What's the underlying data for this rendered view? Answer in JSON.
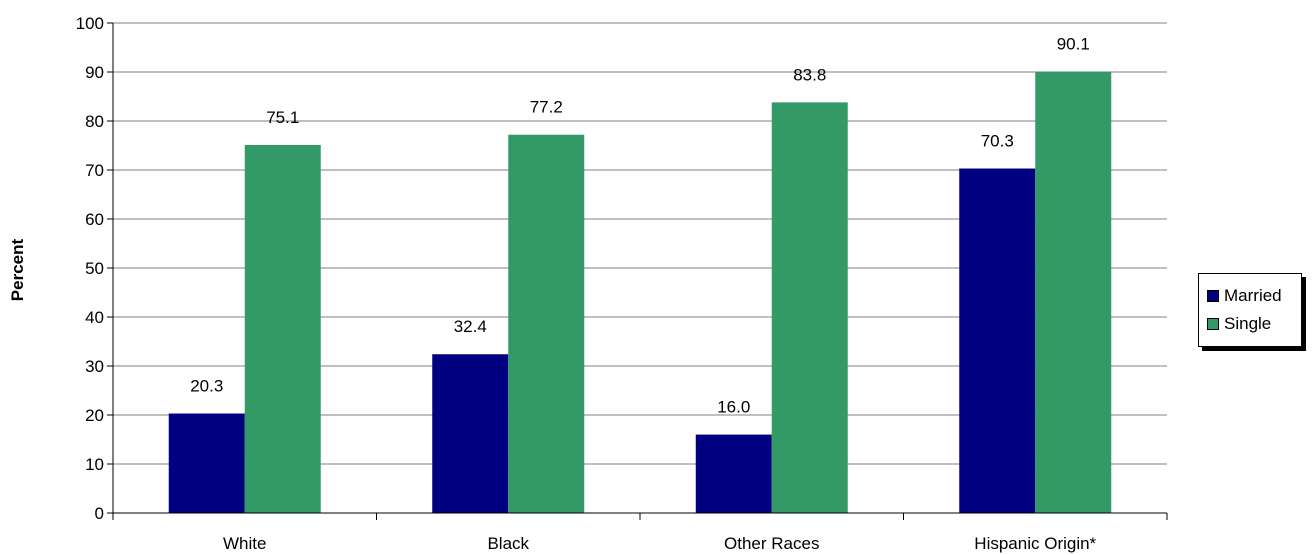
{
  "chart_data": {
    "type": "bar",
    "categories": [
      "White",
      "Black",
      "Other Races",
      "Hispanic Origin*"
    ],
    "series": [
      {
        "name": "Married",
        "values": [
          20.3,
          32.4,
          16.0,
          70.3
        ],
        "color": "#000080"
      },
      {
        "name": "Single",
        "values": [
          75.1,
          77.2,
          83.8,
          90.1
        ],
        "color": "#339966"
      }
    ],
    "data_labels": [
      [
        "20.3",
        "32.4",
        "16.0",
        "70.3"
      ],
      [
        "75.1",
        "77.2",
        "83.8",
        "90.1"
      ]
    ],
    "ylabel": "Percent",
    "xlabel": "",
    "ylim": [
      0,
      100
    ],
    "yticks": [
      0,
      10,
      20,
      30,
      40,
      50,
      60,
      70,
      80,
      90,
      100
    ],
    "grid": true,
    "legend_position": "right"
  }
}
